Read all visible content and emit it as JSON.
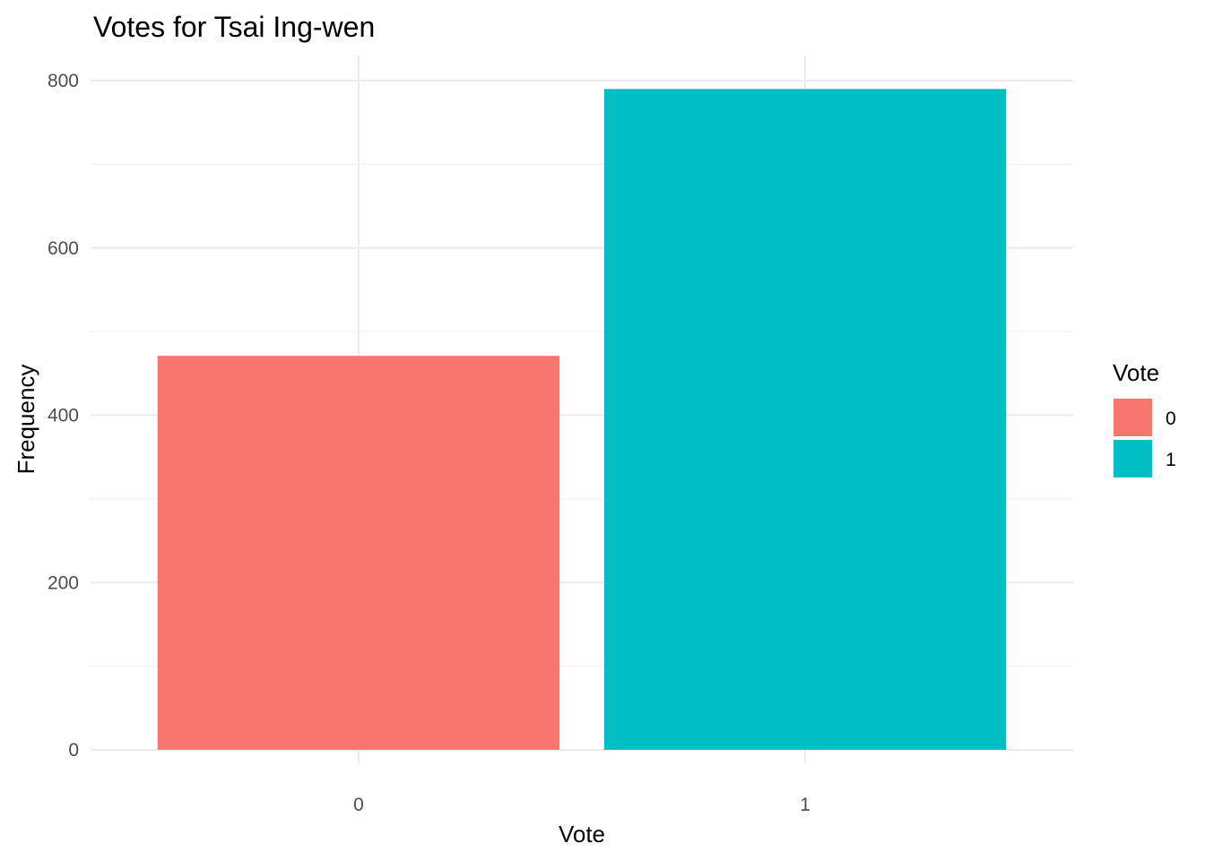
{
  "chart_data": {
    "type": "bar",
    "title": "Votes for Tsai Ing-wen",
    "xlabel": "Vote",
    "ylabel": "Frequency",
    "categories": [
      "0",
      "1"
    ],
    "values": [
      471,
      790
    ],
    "ylim": [
      0,
      800
    ],
    "yticks": [
      "0",
      "200",
      "400",
      "600",
      "800"
    ],
    "colors": [
      "#F8766D",
      "#00BFC4"
    ],
    "grid": true,
    "legend": {
      "title": "Vote",
      "position": "right",
      "entries": [
        {
          "label": "0",
          "color": "#F8766D"
        },
        {
          "label": "1",
          "color": "#00BFC4"
        }
      ]
    }
  }
}
